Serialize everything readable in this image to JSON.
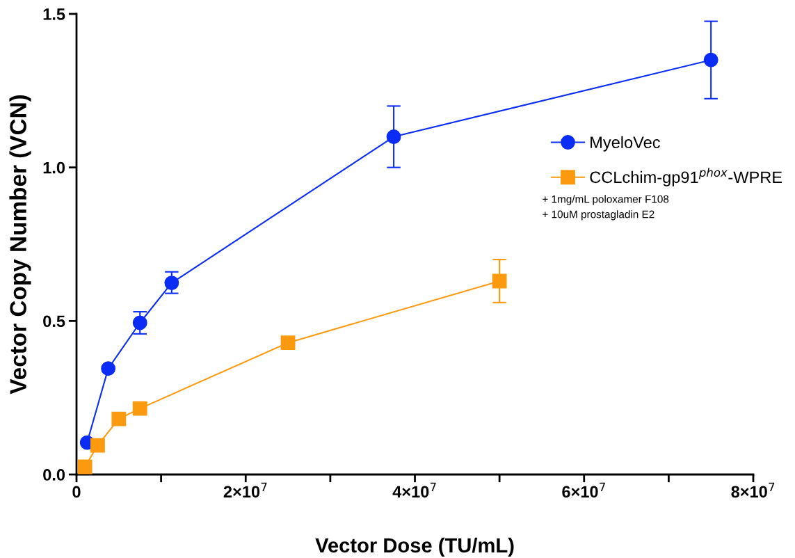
{
  "chart_data": {
    "type": "line",
    "xlabel": "Vector Dose (TU/mL)",
    "ylabel": "Vector Copy Number (VCN)",
    "xlim": [
      0,
      80000000
    ],
    "ylim": [
      0,
      1.5
    ],
    "xticks": [
      {
        "value": 0,
        "label": "0"
      },
      {
        "value": 10000000,
        "label": null
      },
      {
        "value": 20000000,
        "label": "2×10$^{7}$"
      },
      {
        "value": 30000000,
        "label": null
      },
      {
        "value": 40000000,
        "label": "4×10$^{7}$"
      },
      {
        "value": 50000000,
        "label": null
      },
      {
        "value": 60000000,
        "label": "6×10$^{7}$"
      },
      {
        "value": 70000000,
        "label": null
      },
      {
        "value": 80000000,
        "label": "8×10$^{7}$"
      }
    ],
    "yticks": [
      {
        "value": 0,
        "label": "0.0"
      },
      {
        "value": 0.5,
        "label": "0.5"
      },
      {
        "value": 1,
        "label": "1.0"
      },
      {
        "value": 1.5,
        "label": "1.5"
      }
    ],
    "grid": false,
    "legend": "right",
    "line_style": "solid",
    "series": [
      {
        "name": "MyeloVec",
        "color": "#0a2cf5",
        "marker": "circle",
        "x": [
          1250000,
          3750000,
          7500000,
          11250000,
          37500000,
          75000000
        ],
        "values": [
          0.104,
          0.345,
          0.494,
          0.624,
          1.1,
          1.35
        ],
        "errors": [
          null,
          null,
          [
            0.458,
            0.53
          ],
          [
            0.59,
            0.66
          ],
          [
            1.0,
            1.2
          ],
          [
            1.224,
            1.476
          ]
        ]
      },
      {
        "name": "CCLchim-gp91$^{phox}$-WPRE",
        "color": "#fb9a0e",
        "marker": "square",
        "x": [
          1000000,
          2500000,
          5000000,
          7500000,
          25000000,
          50000000
        ],
        "values": [
          0.025,
          0.095,
          0.181,
          0.215,
          0.429,
          0.63
        ],
        "errors": [
          null,
          null,
          null,
          null,
          null,
          [
            0.56,
            0.7
          ]
        ]
      }
    ],
    "annotations": [
      "+ 1mg/mL poloxamer F108",
      "+ 10uM prostagladin E2"
    ]
  }
}
